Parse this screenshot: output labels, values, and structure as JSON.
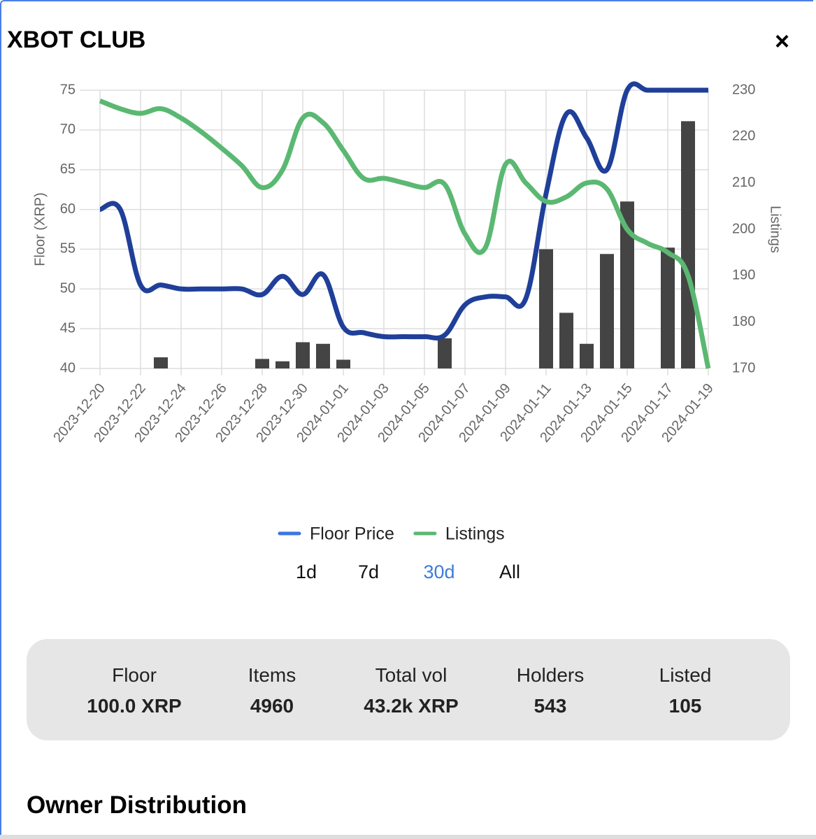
{
  "header": {
    "title": "XBOT CLUB",
    "close": "×"
  },
  "chart_data": {
    "type": "combo",
    "categories": [
      "2023-12-20",
      null,
      "2023-12-22",
      null,
      "2023-12-24",
      null,
      "2023-12-26",
      null,
      "2023-12-28",
      null,
      "2023-12-30",
      null,
      "2024-01-01",
      null,
      "2024-01-03",
      null,
      "2024-01-05",
      null,
      "2024-01-07",
      null,
      "2024-01-09",
      null,
      "2024-01-11",
      null,
      "2024-01-13",
      null,
      "2024-01-15",
      null,
      "2024-01-17",
      null,
      "2024-01-19"
    ],
    "ylabel": "Floor (XRP)",
    "y2label": "Listings",
    "ylim": [
      40,
      75
    ],
    "yticks": [
      40,
      45,
      50,
      55,
      60,
      65,
      70,
      75
    ],
    "y2lim": [
      170,
      230
    ],
    "y2ticks": [
      170,
      180,
      190,
      200,
      210,
      220,
      230
    ],
    "grid": true,
    "series": [
      {
        "name": "Floor Price",
        "type": "line",
        "color": "#1f3f99",
        "legend_color": "#3a76e0",
        "values": [
          60,
          60,
          50.5,
          50.5,
          50,
          50,
          50,
          50,
          49.3,
          51.6,
          49.3,
          51.8,
          45.2,
          44.5,
          44,
          44,
          44,
          44.2,
          48,
          49,
          49,
          48.8,
          62,
          72,
          69,
          65,
          75,
          75,
          75,
          75,
          75
        ]
      },
      {
        "name": "Listings",
        "type": "line",
        "axis": "y2",
        "color": "#5bb872",
        "legend_color": "#5bb872",
        "values": [
          227.7,
          226,
          225,
          226,
          224,
          221,
          217.5,
          213.7,
          209,
          212.8,
          224,
          223,
          217,
          211,
          211,
          210,
          209,
          209.7,
          199,
          196,
          214,
          210,
          206,
          207,
          210,
          208.7,
          200,
          197,
          195,
          190,
          170
        ]
      },
      {
        "type": "bar",
        "color": "#444444",
        "values": [
          null,
          null,
          null,
          41.4,
          null,
          null,
          null,
          null,
          41.2,
          40.9,
          43.3,
          43.1,
          41.1,
          null,
          null,
          null,
          null,
          43.8,
          null,
          null,
          null,
          null,
          55,
          47,
          43.1,
          54.4,
          61,
          null,
          55.2,
          71.1,
          null
        ]
      }
    ]
  },
  "ranges": [
    {
      "label": "1d",
      "active": false
    },
    {
      "label": "7d",
      "active": false
    },
    {
      "label": "30d",
      "active": true
    },
    {
      "label": "All",
      "active": false
    }
  ],
  "stats": [
    {
      "label": "Floor",
      "value": "100.0 XRP"
    },
    {
      "label": "Items",
      "value": "4960"
    },
    {
      "label": "Total vol",
      "value": "43.2k XRP"
    },
    {
      "label": "Holders",
      "value": "543"
    },
    {
      "label": "Listed",
      "value": "105"
    }
  ],
  "section": {
    "title": "Owner Distribution"
  }
}
